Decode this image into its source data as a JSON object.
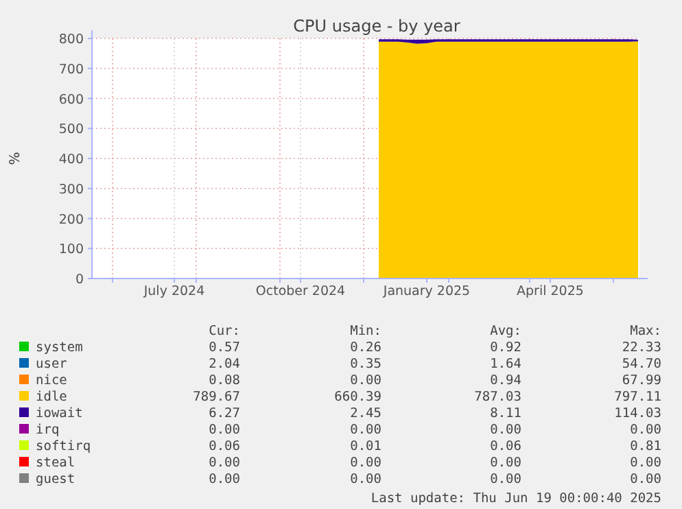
{
  "chart_data": {
    "type": "area",
    "title": "CPU usage - by year",
    "ylabel": "%",
    "stacked": true,
    "grid": true,
    "legend": "bottom",
    "x": [
      "2024-12-12",
      "2024-12-19",
      "2024-12-26",
      "2025-01-02",
      "2025-01-09",
      "2025-01-16",
      "2025-01-23",
      "2025-01-30",
      "2025-02-06",
      "2025-02-13",
      "2025-02-20",
      "2025-02-27",
      "2025-03-06",
      "2025-03-13",
      "2025-03-20",
      "2025-03-27",
      "2025-04-03",
      "2025-04-10",
      "2025-04-17",
      "2025-04-24",
      "2025-05-01",
      "2025-05-08",
      "2025-05-15",
      "2025-05-22",
      "2025-05-29",
      "2025-06-05",
      "2025-06-12",
      "2025-06-19"
    ],
    "xlim": [
      "2024-05-17",
      "2025-06-20"
    ],
    "xticks": [
      {
        "value": "2024-06-01",
        "label": null
      },
      {
        "value": "2024-07-16",
        "label": "July 2024"
      },
      {
        "value": "2024-08-01",
        "label": null
      },
      {
        "value": "2024-10-01",
        "label": null
      },
      {
        "value": "2024-10-16",
        "label": "October 2024"
      },
      {
        "value": "2024-12-01",
        "label": null
      },
      {
        "value": "2025-01-16",
        "label": "January 2025"
      },
      {
        "value": "2025-02-01",
        "label": null
      },
      {
        "value": "2025-04-01",
        "label": null
      },
      {
        "value": "2025-04-16",
        "label": "April 2025"
      },
      {
        "value": "2025-06-01",
        "label": null
      }
    ],
    "ylim": [
      0,
      800
    ],
    "yticks": [
      0,
      100,
      200,
      300,
      400,
      500,
      600,
      700,
      800
    ],
    "series": [
      {
        "name": "system",
        "color": "#00cc00",
        "values": [
          null,
          null,
          null,
          null,
          null,
          null,
          null,
          null,
          null,
          null,
          null,
          null,
          null,
          null,
          null,
          null,
          null,
          null,
          null,
          null,
          null,
          null,
          null,
          null,
          null,
          null,
          null,
          null
        ]
      },
      {
        "name": "user",
        "color": "#0066b3",
        "values": [
          null,
          null,
          null,
          null,
          null,
          null,
          null,
          null,
          null,
          null,
          null,
          null,
          null,
          null,
          null,
          null,
          null,
          null,
          null,
          null,
          null,
          null,
          null,
          null,
          null,
          null,
          null,
          null
        ]
      },
      {
        "name": "nice",
        "color": "#ff8000",
        "values": [
          null,
          null,
          null,
          null,
          null,
          null,
          null,
          null,
          null,
          null,
          null,
          null,
          null,
          null,
          null,
          null,
          null,
          null,
          null,
          null,
          null,
          null,
          null,
          null,
          null,
          null,
          null,
          null
        ]
      },
      {
        "name": "idle",
        "color": "#ffcc00",
        "values": [
          789,
          789,
          789,
          786,
          782,
          784,
          789,
          789,
          789,
          789,
          789,
          789,
          789,
          789,
          789,
          789,
          789,
          789,
          789,
          789,
          789,
          789,
          789,
          789,
          789,
          789,
          789,
          790
        ]
      },
      {
        "name": "iowait",
        "color": "#330099",
        "values": [
          8,
          8,
          8,
          10,
          14,
          12,
          8,
          8,
          8,
          8,
          8,
          8,
          8,
          8,
          8,
          8,
          8,
          8,
          8,
          8,
          8,
          8,
          8,
          8,
          8,
          8,
          8,
          6
        ]
      },
      {
        "name": "irq",
        "color": "#990099",
        "values": [
          null,
          null,
          null,
          null,
          null,
          null,
          null,
          null,
          null,
          null,
          null,
          null,
          null,
          null,
          null,
          null,
          null,
          null,
          null,
          null,
          null,
          null,
          null,
          null,
          null,
          null,
          null,
          null
        ]
      },
      {
        "name": "softirq",
        "color": "#ccff00",
        "values": [
          null,
          null,
          null,
          null,
          null,
          null,
          null,
          null,
          null,
          null,
          null,
          null,
          null,
          null,
          null,
          null,
          null,
          null,
          null,
          null,
          null,
          null,
          null,
          null,
          null,
          null,
          null,
          null
        ]
      },
      {
        "name": "steal",
        "color": "#ff0000",
        "values": [
          null,
          null,
          null,
          null,
          null,
          null,
          null,
          null,
          null,
          null,
          null,
          null,
          null,
          null,
          null,
          null,
          null,
          null,
          null,
          null,
          null,
          null,
          null,
          null,
          null,
          null,
          null,
          null
        ]
      },
      {
        "name": "guest",
        "color": "#808080",
        "values": [
          null,
          null,
          null,
          null,
          null,
          null,
          null,
          null,
          null,
          null,
          null,
          null,
          null,
          null,
          null,
          null,
          null,
          null,
          null,
          null,
          null,
          null,
          null,
          null,
          null,
          null,
          null,
          null
        ]
      }
    ],
    "annotations": [
      "Cur:",
      "Min:",
      "Avg:",
      "Max:",
      "0.57",
      "0.26",
      "0.92",
      "22.33",
      "2.04",
      "0.35",
      "1.64",
      "54.70",
      "0.08",
      "0.00",
      "0.94",
      "67.99",
      "789.67",
      "660.39",
      "787.03",
      "797.11",
      "6.27",
      "2.45",
      "8.11",
      "114.03",
      "0.00",
      "0.00",
      "0.00",
      "0.00",
      "0.06",
      "0.01",
      "0.06",
      "0.81",
      "0.00",
      "0.00",
      "0.00",
      "0.00",
      "0.00",
      "0.00",
      "0.00",
      "0.00",
      "Last update: Thu Jun 19 00:00:40 2025"
    ]
  }
}
